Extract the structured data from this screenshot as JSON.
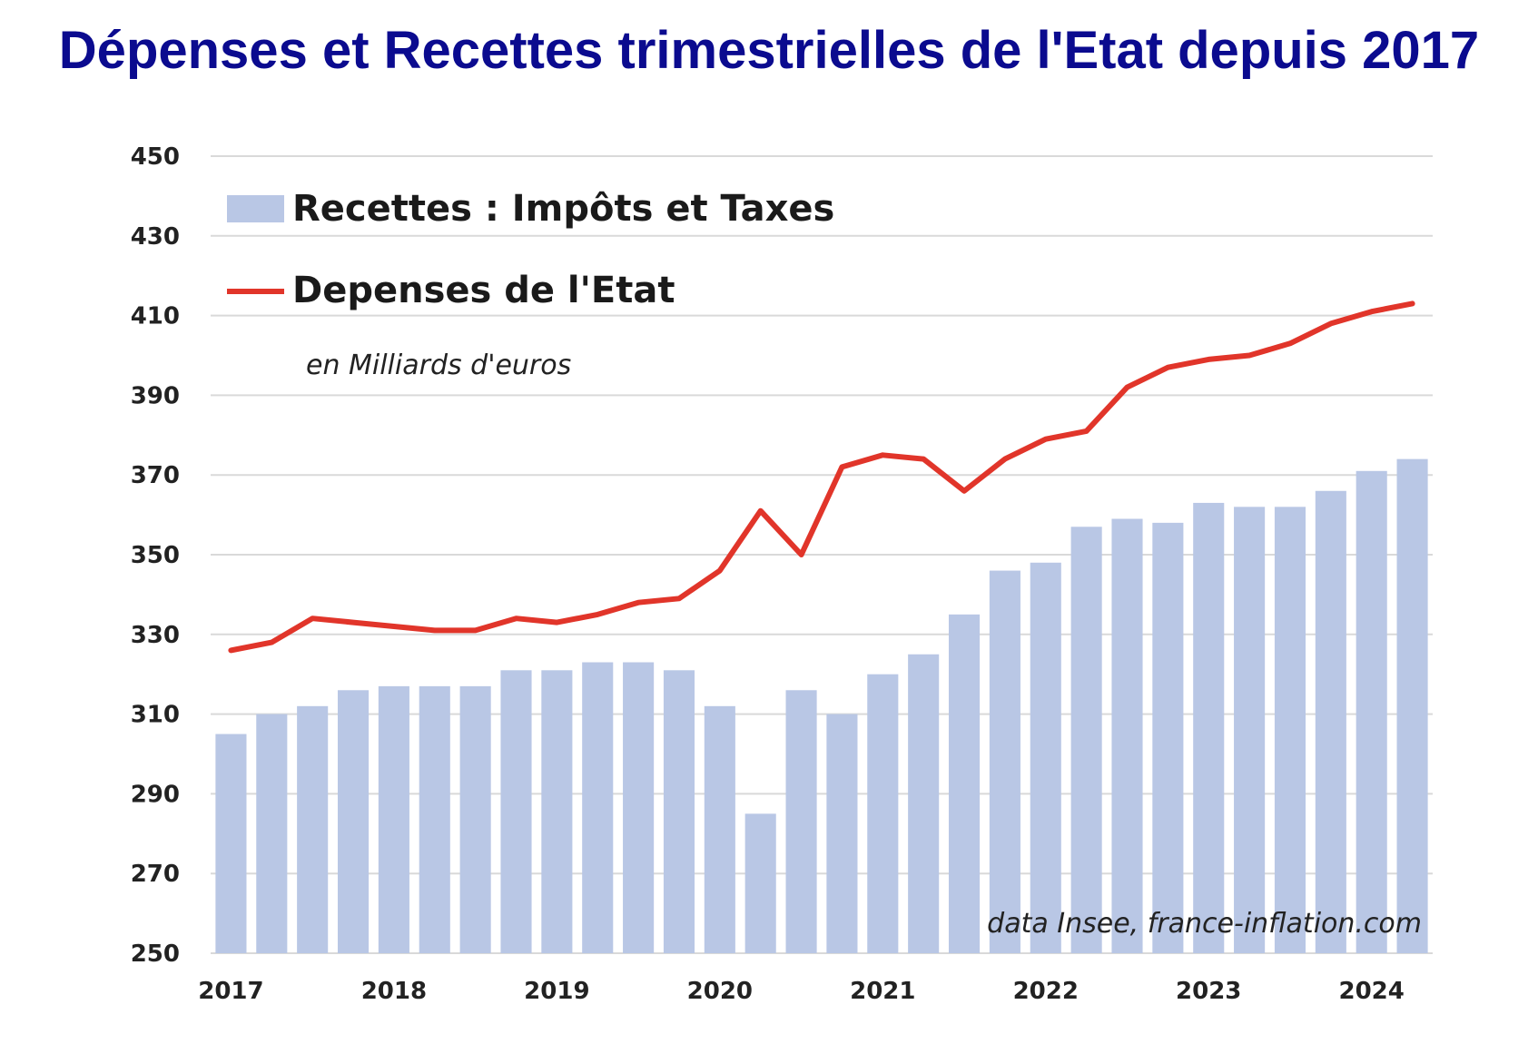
{
  "chart_data": {
    "type": "bar",
    "title": "Dépenses et Recettes trimestrielles de l'Etat depuis 2017",
    "subtitle": "en Milliards d'euros",
    "source": "data Insee, france-inflation.com",
    "ylim": [
      250,
      450
    ],
    "yticks": [
      "250",
      "270",
      "290",
      "310",
      "330",
      "350",
      "370",
      "390",
      "410",
      "430",
      "450"
    ],
    "year_labels": [
      "2017",
      "2018",
      "2019",
      "2020",
      "2021",
      "2022",
      "2023",
      "2024"
    ],
    "grid": true,
    "legend_position": "top-left",
    "series": [
      {
        "name": "Recettes : Impôts et Taxes",
        "kind": "bar",
        "color": "#b9c7e5",
        "values": [
          305,
          310,
          312,
          316,
          317,
          317,
          317,
          321,
          321,
          323,
          323,
          321,
          312,
          285,
          316,
          310,
          320,
          325,
          335,
          346,
          348,
          357,
          359,
          358,
          363,
          362,
          362,
          366,
          371,
          374
        ]
      },
      {
        "name": "Depenses de l'Etat",
        "kind": "line",
        "color": "#e1352a",
        "values": [
          326,
          328,
          334,
          333,
          332,
          331,
          331,
          334,
          333,
          335,
          338,
          339,
          346,
          361,
          350,
          372,
          375,
          374,
          366,
          374,
          379,
          381,
          392,
          397,
          399,
          400,
          403,
          408,
          411,
          413
        ]
      }
    ]
  }
}
